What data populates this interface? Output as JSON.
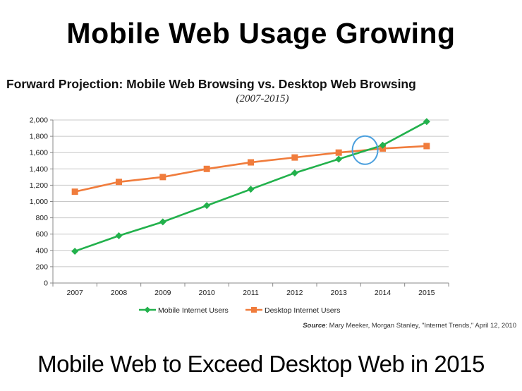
{
  "slide": {
    "title": "Mobile Web Usage Growing",
    "footer": "Mobile Web to Exceed Desktop Web in 2015"
  },
  "source": {
    "label": "Source",
    "text": ": Mary Meeker, Morgan Stanley, \"Internet Trends,\" April 12, 2010"
  },
  "chart_data": {
    "type": "line",
    "title": "Forward Projection: Mobile Web Browsing vs. Desktop Web Browsing",
    "subtitle": "(2007-2015)",
    "xlabel": "",
    "ylabel": "",
    "x": [
      "2007",
      "2008",
      "2009",
      "2010",
      "2011",
      "2012",
      "2013",
      "2014",
      "2015"
    ],
    "ylim": [
      0,
      2000
    ],
    "yticks": [
      0,
      200,
      400,
      600,
      800,
      1000,
      1200,
      1400,
      1600,
      1800,
      2000
    ],
    "ytick_labels": [
      "0",
      "200",
      "400",
      "600",
      "800",
      "1,000",
      "1,200",
      "1,400",
      "1,600",
      "1,800",
      "2,000"
    ],
    "grid": true,
    "legend_position": "bottom",
    "series": [
      {
        "name": "Mobile Internet Users",
        "color": "#22b14c",
        "marker": "diamond",
        "values": [
          390,
          580,
          750,
          950,
          1150,
          1350,
          1520,
          1690,
          1980
        ]
      },
      {
        "name": "Desktop Internet Users",
        "color": "#f07c3c",
        "marker": "square",
        "values": [
          1120,
          1240,
          1300,
          1400,
          1480,
          1540,
          1600,
          1650,
          1680
        ]
      }
    ],
    "annotations": [
      {
        "type": "circle",
        "x": "2013.6",
        "y": 1630,
        "color": "#4a9fdd"
      }
    ]
  }
}
